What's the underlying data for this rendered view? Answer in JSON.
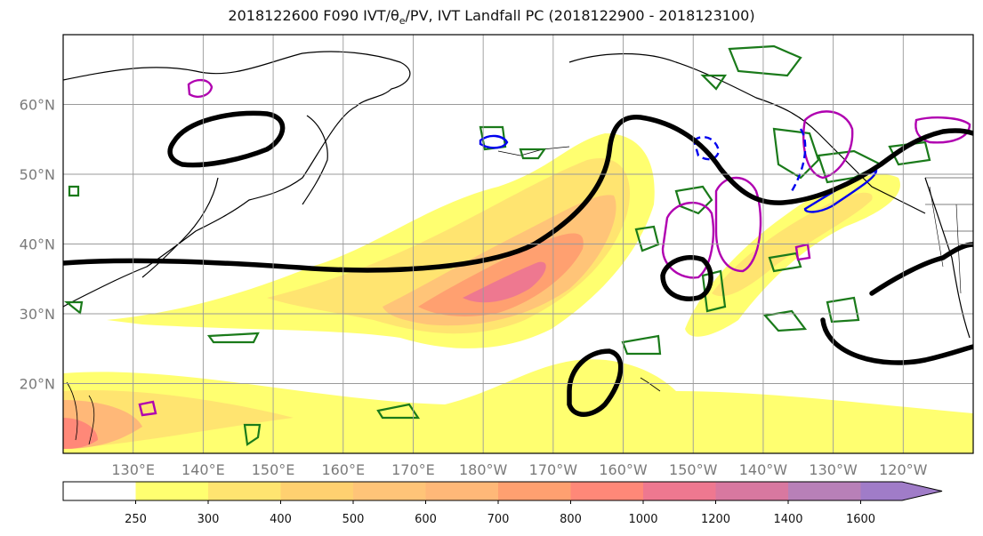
{
  "title": {
    "prefix": "2018122600 F090 IVT/",
    "theta_e": "θ",
    "theta_sub": "e",
    "suffix": "/PV, IVT Landfall PC (2018122900 - 2018123100)"
  },
  "map": {
    "lat_labels": [
      "60°N",
      "50°N",
      "40°N",
      "30°N",
      "20°N"
    ],
    "lat_values": [
      60,
      50,
      40,
      30,
      20
    ],
    "lon_labels": [
      "130°E",
      "140°E",
      "150°E",
      "160°E",
      "170°E",
      "180°W",
      "170°W",
      "160°W",
      "150°W",
      "140°W",
      "130°W",
      "120°W"
    ],
    "lon_values": [
      130,
      140,
      150,
      160,
      170,
      180,
      190,
      200,
      210,
      220,
      230,
      240
    ],
    "lat_range": [
      10,
      70
    ],
    "lon_range": [
      120,
      250
    ],
    "grid": true,
    "colors": {
      "pv_contour": "#000000",
      "theta_e_contour": "#1a7a1a",
      "landfall_pc": "#b000b0",
      "dashed_contour": "#0000ee",
      "coastline": "#000000"
    }
  },
  "colorbar": {
    "levels": [
      250,
      300,
      400,
      500,
      600,
      700,
      800,
      1000,
      1200,
      1400,
      1600
    ],
    "colors": [
      "#ffffff",
      "#ffff70",
      "#ffe470",
      "#ffd070",
      "#ffc478",
      "#ffb878",
      "#ffa070",
      "#ff8878",
      "#ee7890",
      "#d878a0",
      "#b880b8",
      "#a07cc8"
    ],
    "extend": "max"
  }
}
